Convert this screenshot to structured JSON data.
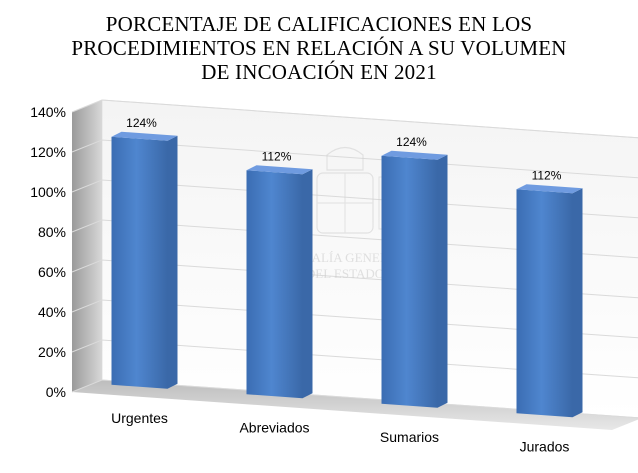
{
  "chart_data": {
    "type": "bar",
    "title_lines": [
      "PORCENTAJE DE CALIFICACIONES EN LOS",
      "PROCEDIMIENTOS EN RELACIÓN A SU VOLUMEN",
      "DE INCOACIÓN EN 2021"
    ],
    "categories": [
      "Urgentes",
      "Abreviados",
      "Sumarios",
      "Jurados"
    ],
    "values": [
      124,
      112,
      124,
      112
    ],
    "data_labels": [
      "124%",
      "112%",
      "124%",
      "112%"
    ],
    "y_ticks": [
      "0%",
      "20%",
      "40%",
      "60%",
      "80%",
      "100%",
      "120%",
      "140%"
    ],
    "ylim": [
      0,
      140
    ],
    "grid": true,
    "legend": "none",
    "style": "3d",
    "bar_color": "#4a7fc4",
    "bar_top_color": "#6f9be0",
    "bar_side_color": "#3a68a8"
  },
  "watermark": {
    "lines": [
      "FISCALÍA GENERAL",
      "DEL ESTADO"
    ]
  }
}
